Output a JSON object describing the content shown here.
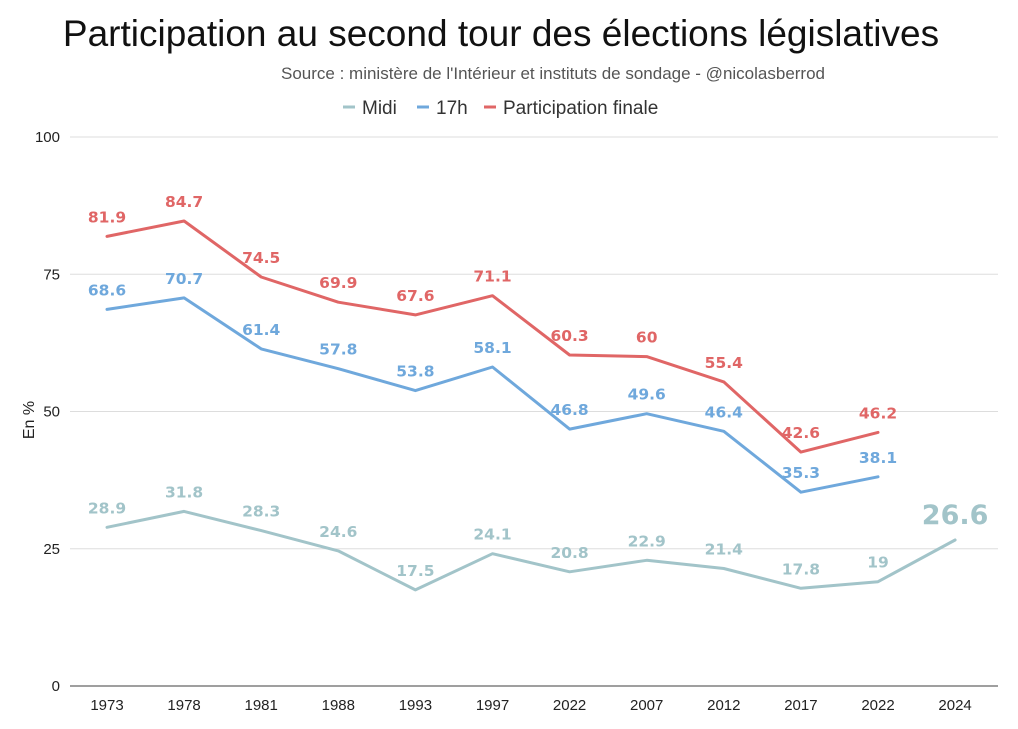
{
  "chart_data": {
    "type": "line",
    "title": "Participation au second tour des élections législatives",
    "subtitle": "Source : ministère de l'Intérieur et instituts de sondage - @nicolasberrod",
    "xlabel": "",
    "ylabel": "En %",
    "ylim": [
      0,
      100
    ],
    "yticks": [
      0,
      25,
      50,
      75,
      100
    ],
    "grid": true,
    "legend_position": "top-center",
    "categories": [
      "1973",
      "1978",
      "1981",
      "1988",
      "1993",
      "1997",
      "2022",
      "2007",
      "2012",
      "2017",
      "2022",
      "2024"
    ],
    "series": [
      {
        "name": "Midi",
        "color": "#a2c4c9",
        "values": [
          28.9,
          31.8,
          28.3,
          24.6,
          17.5,
          24.1,
          20.8,
          22.9,
          21.4,
          17.8,
          19,
          26.6
        ],
        "labels": [
          "28.9",
          "31.8",
          "28.3",
          "24.6",
          "17.5",
          "24.1",
          "20.8",
          "22.9",
          "21.4",
          "17.8",
          "19",
          "26.6"
        ]
      },
      {
        "name": "17h",
        "color": "#6fa8dc",
        "values": [
          68.6,
          70.7,
          61.4,
          57.8,
          53.8,
          58.1,
          46.8,
          49.6,
          46.4,
          35.3,
          38.1,
          null
        ],
        "labels": [
          "68.6",
          "70.7",
          "61.4",
          "57.8",
          "53.8",
          "58.1",
          "46.8",
          "49.6",
          "46.4",
          "35.3",
          "38.1",
          null
        ]
      },
      {
        "name": "Participation finale",
        "color": "#e06666",
        "values": [
          81.9,
          84.7,
          74.5,
          69.9,
          67.6,
          71.1,
          60.3,
          60,
          55.4,
          42.6,
          46.2,
          null
        ],
        "labels": [
          "81.9",
          "84.7",
          "74.5",
          "69.9",
          "67.6",
          "71.1",
          "60.3",
          "60",
          "55.4",
          "42.6",
          "46.2",
          null
        ]
      }
    ]
  }
}
